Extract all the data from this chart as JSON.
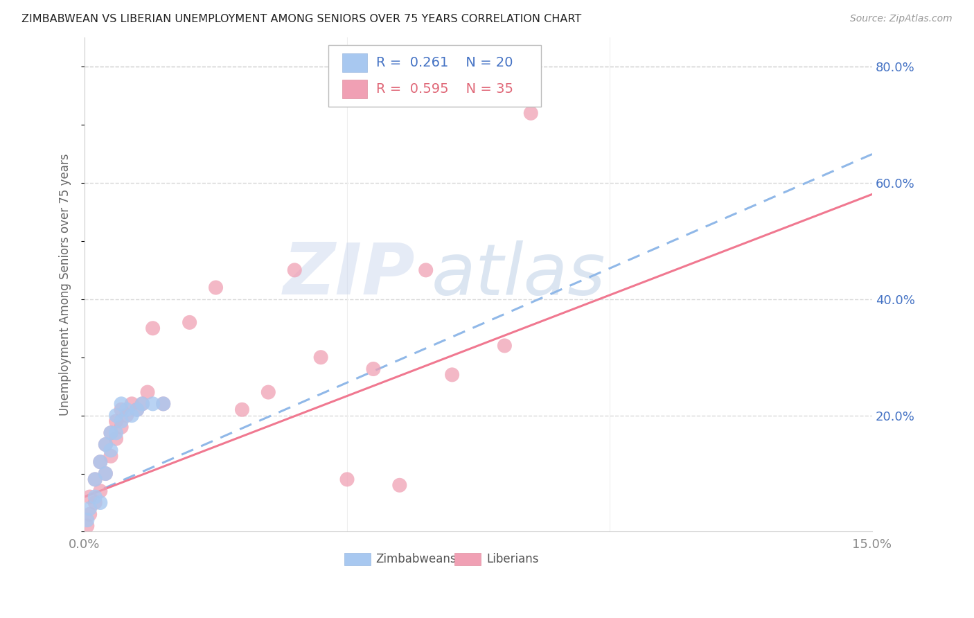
{
  "title": "ZIMBABWEAN VS LIBERIAN UNEMPLOYMENT AMONG SENIORS OVER 75 YEARS CORRELATION CHART",
  "source": "Source: ZipAtlas.com",
  "ylabel": "Unemployment Among Seniors over 75 years",
  "xlim": [
    0.0,
    0.15
  ],
  "ylim": [
    0.0,
    0.85
  ],
  "zimbabwe_color": "#a8c8f0",
  "liberia_color": "#f0a0b4",
  "zimbabwe_trend_color": "#90b8e8",
  "liberia_trend_color": "#f07890",
  "zimbabwe_R": 0.261,
  "zimbabwe_N": 20,
  "liberia_R": 0.595,
  "liberia_N": 35,
  "watermark_top": "ZIP",
  "watermark_bot": "atlas",
  "watermark_color": "#c8d8f0",
  "background_color": "#ffffff",
  "grid_color": "#d8d8d8",
  "text_color_blue": "#4472c4",
  "text_color_pink": "#e06878",
  "zimbabwe_x": [
    0.0005,
    0.001,
    0.002,
    0.002,
    0.003,
    0.003,
    0.004,
    0.004,
    0.005,
    0.005,
    0.006,
    0.006,
    0.007,
    0.007,
    0.008,
    0.009,
    0.01,
    0.011,
    0.013,
    0.015
  ],
  "zimbabwe_y": [
    0.02,
    0.04,
    0.06,
    0.09,
    0.05,
    0.12,
    0.1,
    0.15,
    0.14,
    0.17,
    0.17,
    0.2,
    0.19,
    0.22,
    0.21,
    0.2,
    0.21,
    0.22,
    0.22,
    0.22
  ],
  "liberia_x": [
    0.0005,
    0.001,
    0.001,
    0.002,
    0.002,
    0.003,
    0.003,
    0.004,
    0.004,
    0.005,
    0.005,
    0.006,
    0.006,
    0.007,
    0.007,
    0.008,
    0.009,
    0.01,
    0.011,
    0.012,
    0.013,
    0.015,
    0.02,
    0.025,
    0.03,
    0.035,
    0.04,
    0.045,
    0.05,
    0.055,
    0.06,
    0.065,
    0.07,
    0.08,
    0.085
  ],
  "liberia_y": [
    0.01,
    0.03,
    0.06,
    0.05,
    0.09,
    0.07,
    0.12,
    0.1,
    0.15,
    0.13,
    0.17,
    0.16,
    0.19,
    0.18,
    0.21,
    0.2,
    0.22,
    0.21,
    0.22,
    0.24,
    0.35,
    0.22,
    0.36,
    0.42,
    0.21,
    0.24,
    0.45,
    0.3,
    0.09,
    0.28,
    0.08,
    0.45,
    0.27,
    0.32,
    0.72
  ]
}
